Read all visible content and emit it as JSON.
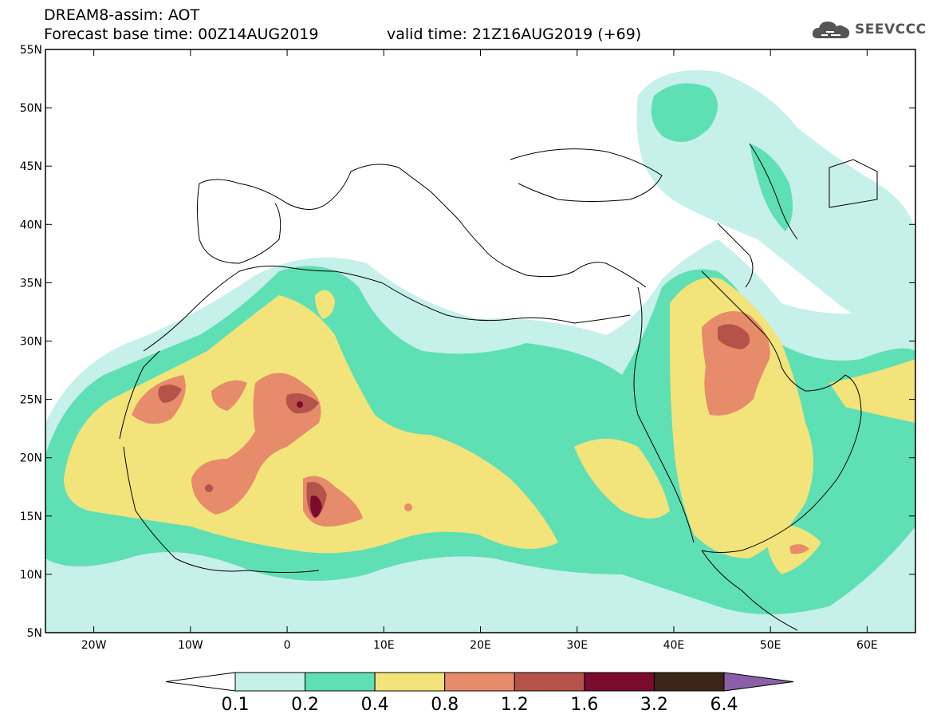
{
  "header": {
    "title_line1": "DREAM8-assim: AOT",
    "title_line2": "Forecast base time: 00Z14AUG2019",
    "valid_time": "valid time: 21Z16AUG2019 (+69)",
    "logo_text": "SEEVCCC"
  },
  "axes": {
    "lat_labels": [
      "55N",
      "50N",
      "45N",
      "40N",
      "35N",
      "30N",
      "25N",
      "20N",
      "15N",
      "10N",
      "5N"
    ],
    "lat_values": [
      55,
      50,
      45,
      40,
      35,
      30,
      25,
      20,
      15,
      10,
      5
    ],
    "lon_labels": [
      "20W",
      "10W",
      "0",
      "10E",
      "20E",
      "30E",
      "40E",
      "50E",
      "60E"
    ],
    "lon_values": [
      -20,
      -10,
      0,
      10,
      20,
      30,
      40,
      50,
      60
    ],
    "lon_range": [
      -25,
      65
    ],
    "lat_range": [
      5,
      55
    ]
  },
  "colorbar": {
    "labels": [
      "0.1",
      "0.2",
      "0.4",
      "0.8",
      "1.2",
      "1.6",
      "3.2",
      "6.4"
    ],
    "colors": [
      "#ffffff",
      "#c6f0ea",
      "#5fdfb4",
      "#f2e47a",
      "#e68c6a",
      "#b5534a",
      "#7a0a2e",
      "#3b2618",
      "#8a5fa8"
    ]
  },
  "colors": {
    "level_01": "#c6f0ea",
    "level_02": "#5fdfb4",
    "level_04": "#f2e47a",
    "level_08": "#e68c6a",
    "level_12": "#b5534a",
    "level_16": "#7a0a2e",
    "level_32": "#3b2618"
  }
}
